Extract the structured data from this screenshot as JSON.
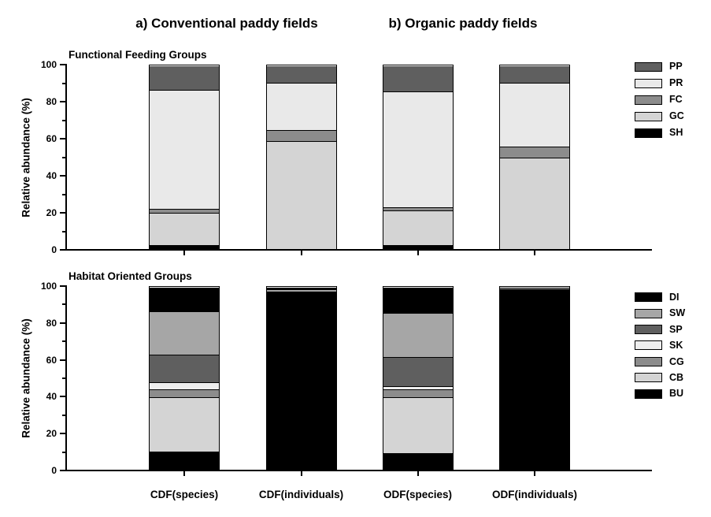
{
  "titles": {
    "a": "a) Conventional paddy fields",
    "b": "b) Organic paddy fields"
  },
  "axis": {
    "ylabel": "Relative abundance (%)",
    "ytick_labels": [
      "0",
      "20",
      "40",
      "60",
      "80",
      "100"
    ]
  },
  "categories": [
    "CDF(species)",
    "CDF(individuals)",
    "ODF(species)",
    "ODF(individuals)"
  ],
  "colors": {
    "black": "#000000",
    "dark_gray": "#5f5f5f",
    "medium_gray": "#8c8c8c",
    "light_medium_gray": "#a6a6a6",
    "light_gray": "#d4d4d4",
    "very_light_gray": "#e9e9e9"
  },
  "chart_data": [
    {
      "type": "bar",
      "stacked": true,
      "title": "Functional Feeding Groups",
      "ylabel": "Relative abundance (%)",
      "ylim": [
        0,
        100
      ],
      "ytick_major": 20,
      "ytick_minor": 10,
      "grid": false,
      "legend_position": "right",
      "legend_order": [
        "PP",
        "PR",
        "FC",
        "GC",
        "SH"
      ],
      "categories": [
        "CDF(species)",
        "CDF(individuals)",
        "ODF(species)",
        "ODF(individuals)"
      ],
      "series": [
        {
          "name": "SH",
          "color": "#000000",
          "values": [
            2,
            0,
            2,
            0
          ]
        },
        {
          "name": "GC",
          "color": "#d4d4d4",
          "values": [
            18,
            59,
            19,
            50
          ]
        },
        {
          "name": "FC",
          "color": "#8c8c8c",
          "values": [
            2,
            6,
            2,
            6
          ]
        },
        {
          "name": "PR",
          "color": "#e9e9e9",
          "values": [
            65,
            26,
            63,
            35
          ]
        },
        {
          "name": "PP",
          "color": "#5f5f5f",
          "values": [
            13,
            9,
            14,
            9
          ]
        }
      ]
    },
    {
      "type": "bar",
      "stacked": true,
      "title": "Habitat Oriented Groups",
      "ylabel": "Relative abundance (%)",
      "ylim": [
        0,
        100
      ],
      "ytick_major": 20,
      "ytick_minor": 10,
      "grid": false,
      "legend_position": "right",
      "legend_order": [
        "DI",
        "SW",
        "SP",
        "SK",
        "CG",
        "CB",
        "BU"
      ],
      "categories": [
        "CDF(species)",
        "CDF(individuals)",
        "ODF(species)",
        "ODF(individuals)"
      ],
      "series": [
        {
          "name": "BU",
          "color": "#000000",
          "values": [
            10,
            98,
            9,
            99
          ]
        },
        {
          "name": "CB",
          "color": "#d4d4d4",
          "values": [
            30,
            0,
            31,
            0
          ]
        },
        {
          "name": "CG",
          "color": "#8c8c8c",
          "values": [
            4,
            0,
            4,
            0
          ]
        },
        {
          "name": "SK",
          "color": "#eeeeee",
          "values": [
            4,
            0,
            2,
            0
          ]
        },
        {
          "name": "SP",
          "color": "#5f5f5f",
          "values": [
            15,
            0,
            16,
            0
          ]
        },
        {
          "name": "SW",
          "color": "#a6a6a6",
          "values": [
            24,
            1,
            24,
            0.5
          ]
        },
        {
          "name": "DI",
          "color": "#000000",
          "values": [
            13,
            1,
            14,
            0.5
          ]
        }
      ]
    }
  ]
}
